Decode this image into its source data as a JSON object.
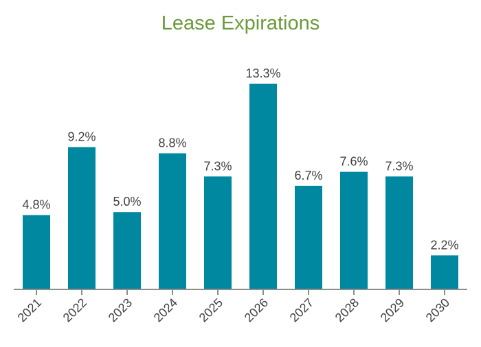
{
  "colors": {
    "title": "#6b9a3a",
    "bar": "#0088a0",
    "axis": "#8c8c8c",
    "label": "#404040"
  },
  "chart_data": {
    "type": "bar",
    "title": "Lease Expirations",
    "xlabel": "",
    "ylabel": "",
    "grid": false,
    "legend": "none",
    "ylim": [
      0,
      14
    ],
    "categories": [
      "2021",
      "2022",
      "2023",
      "2024",
      "2025",
      "2026",
      "2027",
      "2028",
      "2029",
      "2030"
    ],
    "values": [
      4.8,
      9.2,
      5.0,
      8.8,
      7.3,
      13.3,
      6.7,
      7.6,
      7.3,
      2.2
    ],
    "data_labels": [
      "4.8%",
      "9.2%",
      "5.0%",
      "8.8%",
      "7.3%",
      "13.3%",
      "6.7%",
      "7.6%",
      "7.3%",
      "2.2%"
    ]
  }
}
